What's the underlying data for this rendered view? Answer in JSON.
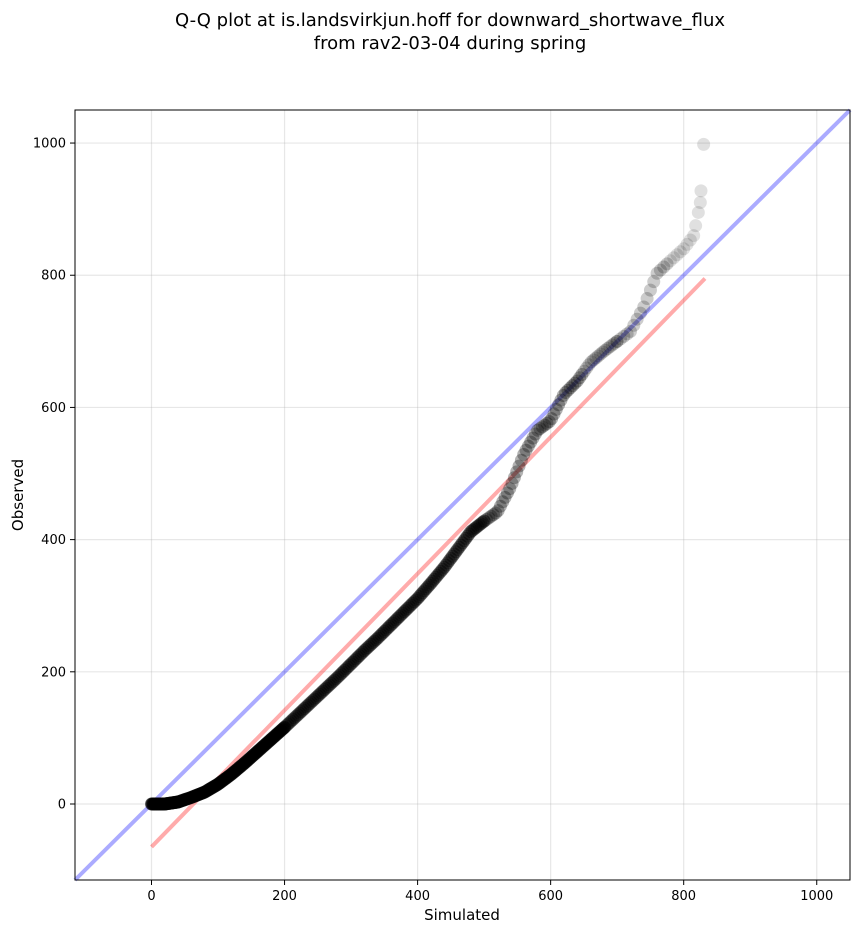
{
  "chart_data": {
    "type": "scatter",
    "title": [
      "Q-Q plot at is.landsvirkjun.hoff for downward_shortwave_flux",
      "from rav2-03-04 during spring"
    ],
    "xlabel": "Simulated",
    "ylabel": "Observed",
    "xlim": [
      -115,
      1050
    ],
    "ylim": [
      -115,
      1050
    ],
    "xticks": [
      0,
      200,
      400,
      600,
      800,
      1000
    ],
    "yticks": [
      0,
      200,
      400,
      600,
      800,
      1000
    ],
    "xtick_labels": [
      "0",
      "200",
      "400",
      "600",
      "800",
      "1000"
    ],
    "ytick_labels": [
      "0",
      "200",
      "400",
      "600",
      "800",
      "1000"
    ],
    "grid": true,
    "point_color": "#000000",
    "quantile_knots": {
      "simulated": [
        0,
        20,
        40,
        60,
        80,
        100,
        120,
        140,
        160,
        180,
        200,
        220,
        240,
        260,
        280,
        300,
        320,
        340,
        360,
        380,
        400,
        420,
        440,
        460,
        480,
        500,
        520,
        540,
        560,
        580,
        600,
        620,
        640,
        660,
        680,
        700,
        720,
        740,
        760,
        780,
        800,
        815,
        825,
        830
      ],
      "observed": [
        0,
        0,
        3,
        10,
        18,
        30,
        45,
        62,
        80,
        98,
        116,
        135,
        154,
        173,
        192,
        212,
        232,
        251,
        271,
        291,
        311,
        334,
        358,
        385,
        412,
        428,
        442,
        480,
        530,
        565,
        580,
        620,
        640,
        668,
        685,
        700,
        715,
        752,
        803,
        822,
        840,
        860,
        910,
        998
      ]
    },
    "reference_lines": [
      {
        "color": "#0000ff",
        "opacity": 0.33,
        "x": [
          -115,
          1050
        ],
        "y": [
          -115,
          1050
        ]
      },
      {
        "color": "#ff0000",
        "opacity": 0.33,
        "x": [
          0,
          832
        ],
        "y": [
          -65,
          795
        ]
      }
    ]
  }
}
